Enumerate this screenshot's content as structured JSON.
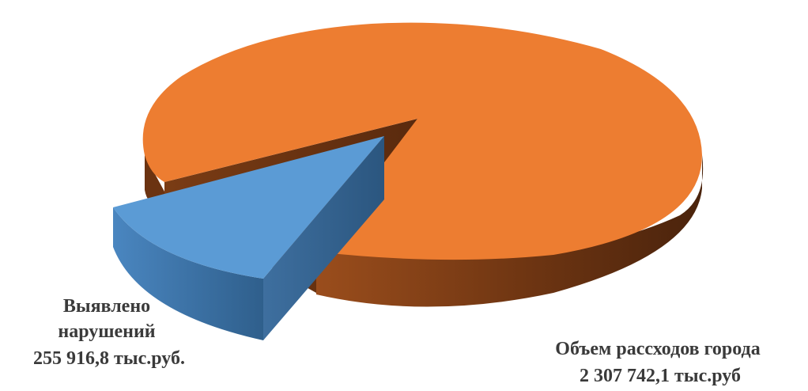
{
  "chart_data": {
    "type": "pie",
    "style": "3d-exploded",
    "legend": "none",
    "slices": [
      {
        "label_lines": [
          "Выявлено",
          "нарушений",
          "255 916,8 тыс.руб."
        ],
        "value": 255916.8,
        "unit": "тыс.руб.",
        "color": "#5b9bd5",
        "exploded": true
      },
      {
        "label_lines": [
          "Объем рассходов города",
          "2 307 742,1 тыс.руб"
        ],
        "value": 2307742.1,
        "unit": "тыс.руб",
        "color": "#ed7d31",
        "exploded": false
      }
    ]
  }
}
